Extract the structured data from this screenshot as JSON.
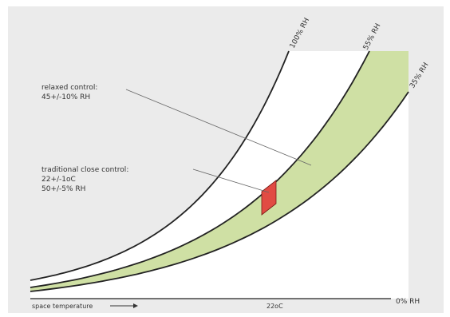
{
  "chart_data": {
    "type": "psychrometric",
    "title": "",
    "xlabel": "space temperature",
    "x_tick": "22oC",
    "ylabel": "",
    "rh_labels": [
      "100% RH",
      "55% RH",
      "35% RH",
      "0% RH"
    ],
    "series": [
      {
        "name": "100% RH",
        "rh": 100
      },
      {
        "name": "55% RH",
        "rh": 55
      },
      {
        "name": "35% RH",
        "rh": 35
      },
      {
        "name": "0% RH",
        "rh": 0
      }
    ],
    "regions": [
      {
        "label_lines": [
          "relaxed control:",
          "45+/-10% RH"
        ],
        "rh_range": [
          35,
          55
        ],
        "color": "#cfe0a4"
      },
      {
        "label_lines": [
          "traditional close control:",
          "22+/-1oC",
          "50+/-5% RH"
        ],
        "center_temp_c": 22,
        "rh_range": [
          45,
          55
        ],
        "color": "#e14b43"
      }
    ],
    "grid": false,
    "colors": {
      "background": "#ebebeb",
      "plot_area": "#ffffff",
      "band": "#cfe0a4",
      "close_control": "#e14b43",
      "curve": "#222222"
    }
  }
}
